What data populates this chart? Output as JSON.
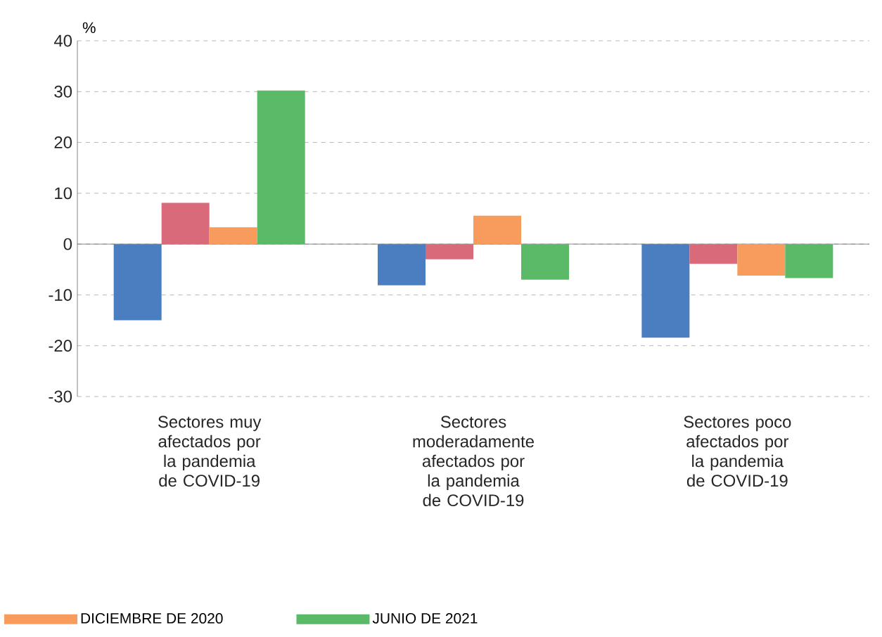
{
  "chart_data": {
    "type": "bar",
    "ylabel": "%",
    "categories": [
      "Sectores muy afectados por la pandemia de COVID-19",
      "Sectores moderadamente afectados por la pandemia de COVID-19",
      "Sectores poco afectados por la pandemia de COVID-19"
    ],
    "series": [
      {
        "color": "#4a7ec0",
        "values": [
          -15,
          -8.1,
          -18.4
        ]
      },
      {
        "color": "#d86a7a",
        "values": [
          8.1,
          -3,
          -3.9
        ]
      },
      {
        "name": "DICIEMBRE DE 2020",
        "color": "#f89c5e",
        "values": [
          3.3,
          5.6,
          -6.2
        ]
      },
      {
        "name": "JUNIO DE 2021",
        "color": "#5bba68",
        "values": [
          30.2,
          -7,
          -6.7
        ]
      }
    ],
    "ylim": [
      -30,
      40
    ],
    "yticks": [
      -30,
      -20,
      -10,
      0,
      10,
      20,
      30,
      40
    ],
    "grid": "y",
    "legend": "bottom"
  }
}
